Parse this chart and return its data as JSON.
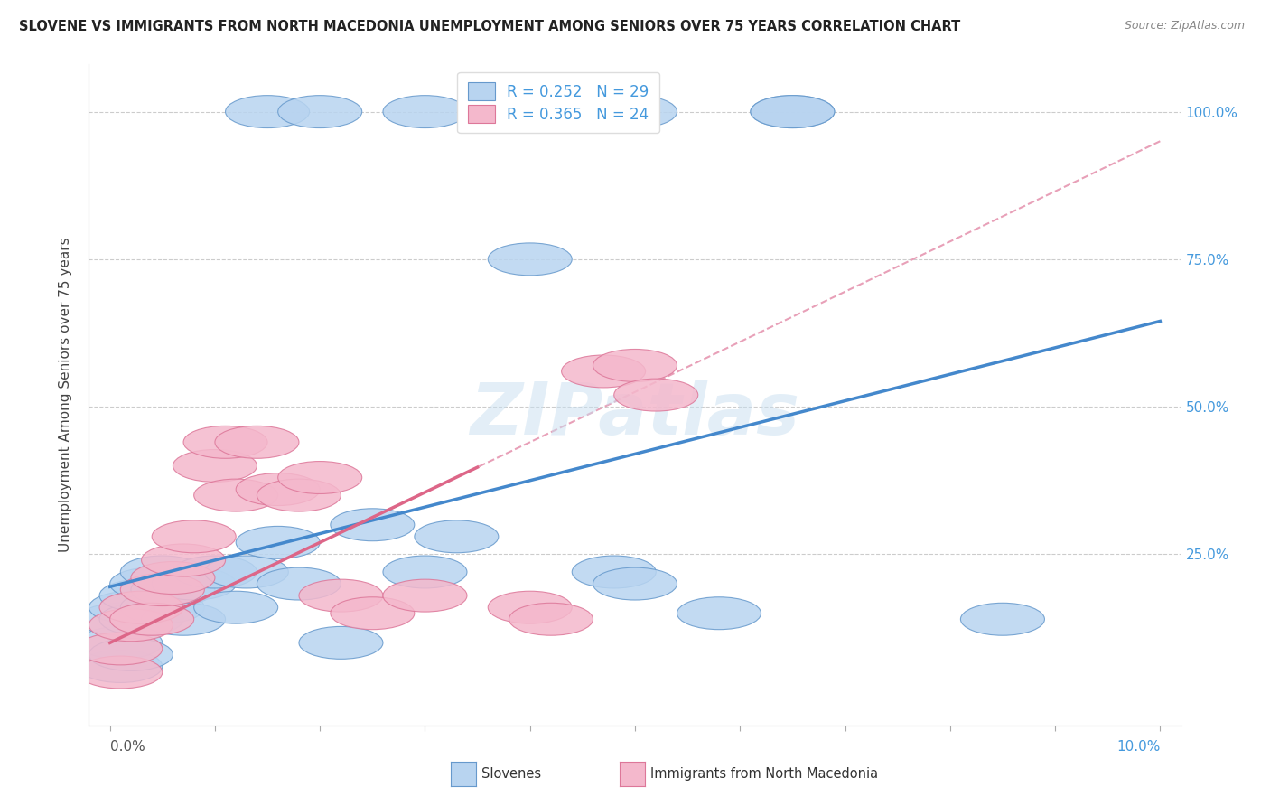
{
  "title": "SLOVENE VS IMMIGRANTS FROM NORTH MACEDONIA UNEMPLOYMENT AMONG SENIORS OVER 75 YEARS CORRELATION CHART",
  "source": "Source: ZipAtlas.com",
  "ylabel": "Unemployment Among Seniors over 75 years",
  "watermark": "ZIPatlas",
  "legend_slovene_R": "0.252",
  "legend_slovene_N": "29",
  "legend_immig_R": "0.365",
  "legend_immig_N": "24",
  "slovene_color": "#b8d4f0",
  "slovene_edge": "#6699cc",
  "immig_color": "#f4b8cc",
  "immig_edge": "#dd7799",
  "slovene_line": "#4488cc",
  "immig_line": "#dd6688",
  "dashed_color": "#e8a0b8",
  "right_tick_color": "#4499dd",
  "xlim": [
    0.0,
    0.1
  ],
  "ylim": [
    0.0,
    1.05
  ],
  "slovene_x": [
    0.001,
    0.001,
    0.001,
    0.002,
    0.002,
    0.003,
    0.003,
    0.004,
    0.005,
    0.005,
    0.006,
    0.007,
    0.008,
    0.01,
    0.012,
    0.013,
    0.016,
    0.018,
    0.022,
    0.025,
    0.03,
    0.033,
    0.04,
    0.048,
    0.05,
    0.058,
    0.065,
    0.085
  ],
  "slovene_y": [
    0.06,
    0.1,
    0.14,
    0.08,
    0.16,
    0.14,
    0.18,
    0.2,
    0.16,
    0.22,
    0.19,
    0.14,
    0.2,
    0.22,
    0.16,
    0.22,
    0.27,
    0.2,
    0.1,
    0.3,
    0.22,
    0.28,
    0.75,
    0.22,
    0.2,
    0.15,
    1.0,
    0.14
  ],
  "top_blue_x": [
    0.015,
    0.02,
    0.03,
    0.04,
    0.05,
    0.065
  ],
  "top_blue_y": [
    1.0,
    1.0,
    1.0,
    1.0,
    1.0,
    1.0
  ],
  "immig_x": [
    0.001,
    0.001,
    0.002,
    0.003,
    0.004,
    0.005,
    0.006,
    0.007,
    0.008,
    0.01,
    0.011,
    0.012,
    0.014,
    0.016,
    0.018,
    0.02,
    0.022,
    0.025,
    0.03,
    0.04,
    0.042,
    0.047,
    0.05,
    0.052
  ],
  "immig_y": [
    0.05,
    0.09,
    0.13,
    0.16,
    0.14,
    0.19,
    0.21,
    0.24,
    0.28,
    0.4,
    0.44,
    0.35,
    0.44,
    0.36,
    0.35,
    0.38,
    0.18,
    0.15,
    0.18,
    0.16,
    0.14,
    0.56,
    0.57,
    0.52
  ],
  "blue_intercept": 0.195,
  "blue_slope": 4.5,
  "pink_intercept": 0.1,
  "pink_slope": 8.5,
  "dashed_intercept": 0.1,
  "dashed_slope": 8.5,
  "xticks": [
    0.0,
    0.01,
    0.02,
    0.03,
    0.04,
    0.05,
    0.06,
    0.07,
    0.08,
    0.09,
    0.1
  ],
  "ytick_positions": [
    0.0,
    0.25,
    0.5,
    0.75,
    1.0
  ],
  "ytick_labels": [
    "",
    "25.0%",
    "50.0%",
    "75.0%",
    "100.0%"
  ]
}
